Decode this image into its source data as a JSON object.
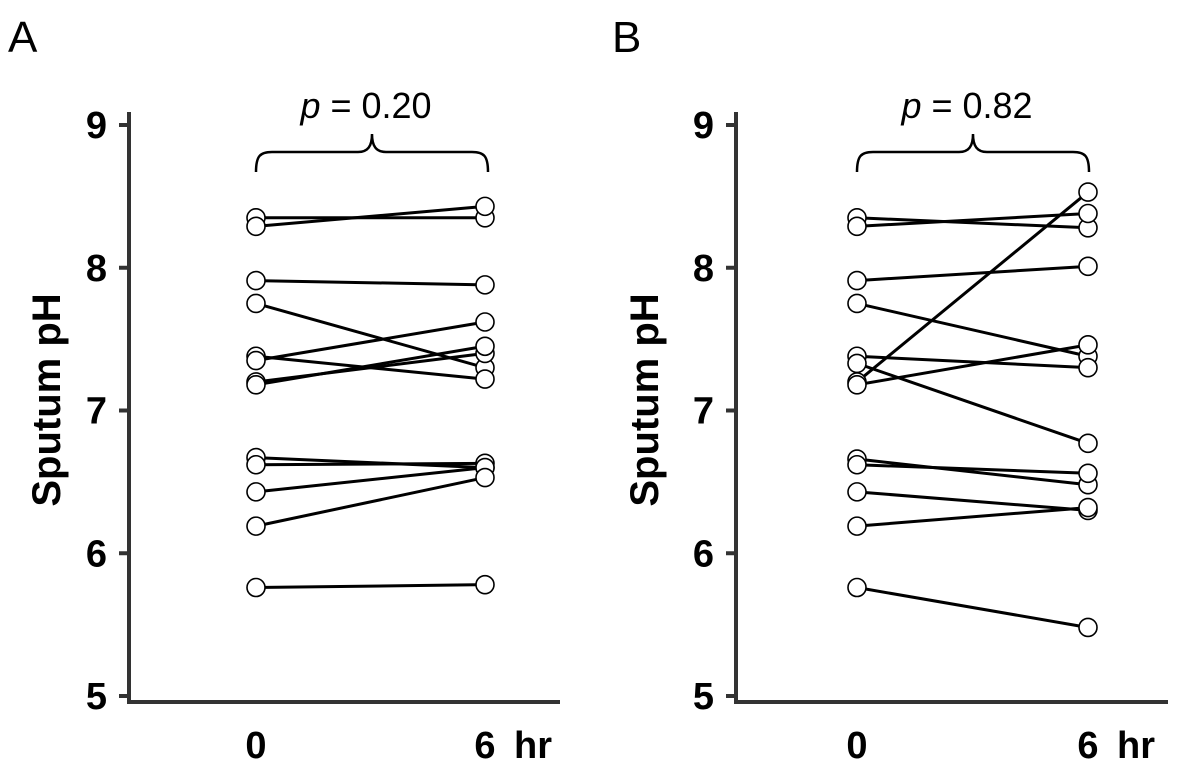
{
  "chart_data": [
    {
      "type": "line",
      "panel_label": "A",
      "ylabel": "Sputum pH",
      "xlabel": "hr",
      "categories": [
        "0",
        "6"
      ],
      "ylim": [
        5,
        9
      ],
      "yticks": [
        "5",
        "6",
        "7",
        "8",
        "9"
      ],
      "annotation": {
        "p_symbol": "p",
        "p_text": " = 0.20"
      },
      "series": [
        {
          "values": [
            8.35,
            8.35
          ]
        },
        {
          "values": [
            8.29,
            8.43
          ]
        },
        {
          "values": [
            7.91,
            7.88
          ]
        },
        {
          "values": [
            7.75,
            7.3
          ]
        },
        {
          "values": [
            7.38,
            7.22
          ]
        },
        {
          "values": [
            7.35,
            7.62
          ]
        },
        {
          "values": [
            7.2,
            7.4
          ]
        },
        {
          "values": [
            7.18,
            7.45
          ]
        },
        {
          "values": [
            6.67,
            6.6
          ]
        },
        {
          "values": [
            6.62,
            6.63
          ]
        },
        {
          "values": [
            6.43,
            6.6
          ]
        },
        {
          "values": [
            6.19,
            6.53
          ]
        },
        {
          "values": [
            5.76,
            5.78
          ]
        }
      ]
    },
    {
      "type": "line",
      "panel_label": "B",
      "ylabel": "Sputum pH",
      "xlabel": "hr",
      "categories": [
        "0",
        "6"
      ],
      "ylim": [
        5,
        9
      ],
      "yticks": [
        "5",
        "6",
        "7",
        "8",
        "9"
      ],
      "annotation": {
        "p_symbol": "p",
        "p_text": " = 0.82"
      },
      "series": [
        {
          "values": [
            8.35,
            8.28
          ]
        },
        {
          "values": [
            8.29,
            8.38
          ]
        },
        {
          "values": [
            7.91,
            8.01
          ]
        },
        {
          "values": [
            7.75,
            7.38
          ]
        },
        {
          "values": [
            7.38,
            7.3
          ]
        },
        {
          "values": [
            7.33,
            6.77
          ]
        },
        {
          "values": [
            7.2,
            8.53
          ]
        },
        {
          "values": [
            7.18,
            7.46
          ]
        },
        {
          "values": [
            6.66,
            6.48
          ]
        },
        {
          "values": [
            6.62,
            6.56
          ]
        },
        {
          "values": [
            6.43,
            6.3
          ]
        },
        {
          "values": [
            6.19,
            6.32
          ]
        },
        {
          "values": [
            5.76,
            5.48
          ]
        }
      ]
    }
  ]
}
